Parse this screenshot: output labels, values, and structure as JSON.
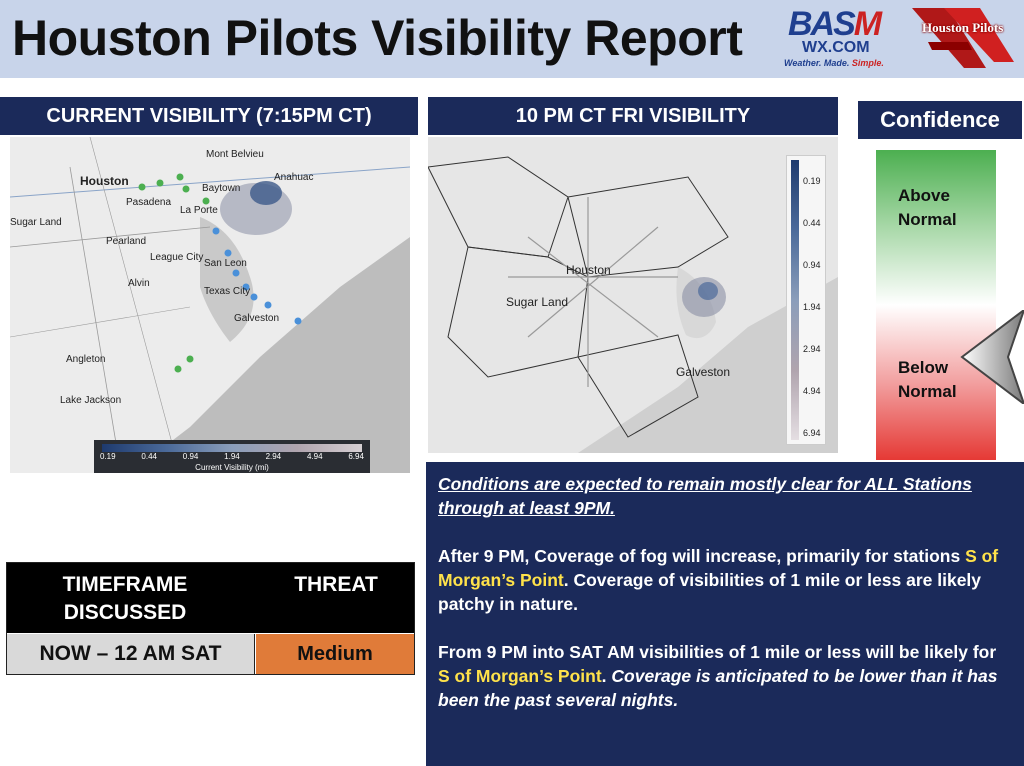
{
  "header": {
    "title": "Houston Pilots Visibility Report",
    "logo_basm": {
      "text_b": "BAS",
      "text_m": "M",
      "domain": "WX.COM",
      "tagline_main": "Weather. Made. ",
      "tagline_simple": "Simple."
    },
    "logo_hp": {
      "text": "Houston Pilots"
    }
  },
  "banners": {
    "current": "CURRENT VISIBILITY (7:15PM CT)",
    "forecast": "10 PM CT FRI VISIBILITY",
    "confidence": "Confidence"
  },
  "map_current": {
    "labels": [
      "Mont Belvieu",
      "Houston",
      "Baytown",
      "Anahuac",
      "Pasadena",
      "La Porte",
      "Sugar Land",
      "Pearland",
      "League City",
      "San Leon",
      "Alvin",
      "Texas City",
      "Galveston",
      "Angleton",
      "Lake Jackson"
    ],
    "legend_ticks": [
      "0.19",
      "0.44",
      "0.94",
      "1.94",
      "2.94",
      "4.94",
      "6.94"
    ],
    "legend_caption": "Current Visibility (mi)"
  },
  "map_forecast": {
    "labels": [
      "Houston",
      "Sugar Land",
      "Galveston"
    ],
    "legend_ticks": [
      "0.19",
      "0.44",
      "0.94",
      "1.94",
      "2.94",
      "4.94",
      "6.94"
    ]
  },
  "confidence": {
    "above": "Above Normal",
    "below": "Below Normal",
    "colors": {
      "top": "#4caf50",
      "bottom": "#e53935"
    }
  },
  "timeframe_table": {
    "col1_header": "TIMEFRAME DISCUSSED",
    "col2_header": "THREAT",
    "timeframe": "NOW – 12 AM SAT",
    "threat": "Medium",
    "threat_color": "#e07b39"
  },
  "discussion": {
    "lead": "Conditions are expected to remain mostly clear for ALL Stations through at least 9PM.",
    "p2_a": "After 9 PM, Coverage of fog will increase, primarily for stations ",
    "p2_hl": "S of Morgan’s Point",
    "p2_b": ".  Coverage of visibilities of 1 mile or less are likely patchy in nature.",
    "p3_a": "From 9 PM into SAT AM visibilities of 1 mile or less will be likely for ",
    "p3_hl": "S of Morgan’s Point",
    "p3_b": ".  ",
    "p3_it": "Coverage is anticipated to be lower than it has been the past several nights."
  }
}
